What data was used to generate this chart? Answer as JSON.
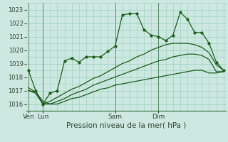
{
  "background_color": "#cce8e0",
  "grid_color": "#99ccbb",
  "line_color": "#1a5c1a",
  "xlabel": "Pression niveau de la mer( hPa )",
  "ylim": [
    1015.5,
    1023.5
  ],
  "yticks": [
    1016,
    1017,
    1018,
    1019,
    1020,
    1021,
    1022,
    1023
  ],
  "xtick_labels": [
    "Ven",
    "Lun",
    "Sam",
    "Dim"
  ],
  "xtick_positions": [
    0,
    2,
    12,
    18
  ],
  "vline_positions": [
    0,
    2,
    12,
    18
  ],
  "n_points": 28,
  "series1_y": [
    1018.5,
    1017.0,
    1016.0,
    1016.8,
    1017.0,
    1019.2,
    1019.4,
    1019.1,
    1019.5,
    1019.5,
    1019.5,
    1019.9,
    1020.3,
    1022.6,
    1022.7,
    1022.7,
    1021.5,
    1021.1,
    1021.0,
    1020.7,
    1021.1,
    1022.8,
    1022.3,
    1021.3,
    1021.3,
    1020.5,
    1019.1,
    1018.5
  ],
  "series2_y": [
    1017.2,
    1016.9,
    1016.0,
    1016.2,
    1016.5,
    1016.8,
    1017.1,
    1017.3,
    1017.6,
    1017.9,
    1018.1,
    1018.4,
    1018.7,
    1019.0,
    1019.2,
    1019.5,
    1019.7,
    1020.0,
    1020.2,
    1020.4,
    1020.5,
    1020.5,
    1020.5,
    1020.4,
    1020.2,
    1019.8,
    1018.9,
    1018.5
  ],
  "series3_y": [
    1017.0,
    1016.8,
    1016.0,
    1016.0,
    1016.2,
    1016.4,
    1016.7,
    1016.9,
    1017.1,
    1017.4,
    1017.6,
    1017.8,
    1018.0,
    1018.2,
    1018.4,
    1018.6,
    1018.8,
    1019.0,
    1019.2,
    1019.3,
    1019.5,
    1019.6,
    1019.7,
    1019.7,
    1019.6,
    1019.3,
    1018.4,
    1018.4
  ],
  "series4_y": [
    1017.0,
    1016.9,
    1016.2,
    1016.0,
    1016.0,
    1016.2,
    1016.4,
    1016.5,
    1016.7,
    1016.9,
    1017.1,
    1017.2,
    1017.4,
    1017.5,
    1017.6,
    1017.7,
    1017.8,
    1017.9,
    1018.0,
    1018.1,
    1018.2,
    1018.3,
    1018.4,
    1018.5,
    1018.5,
    1018.3,
    1018.3,
    1018.4
  ]
}
